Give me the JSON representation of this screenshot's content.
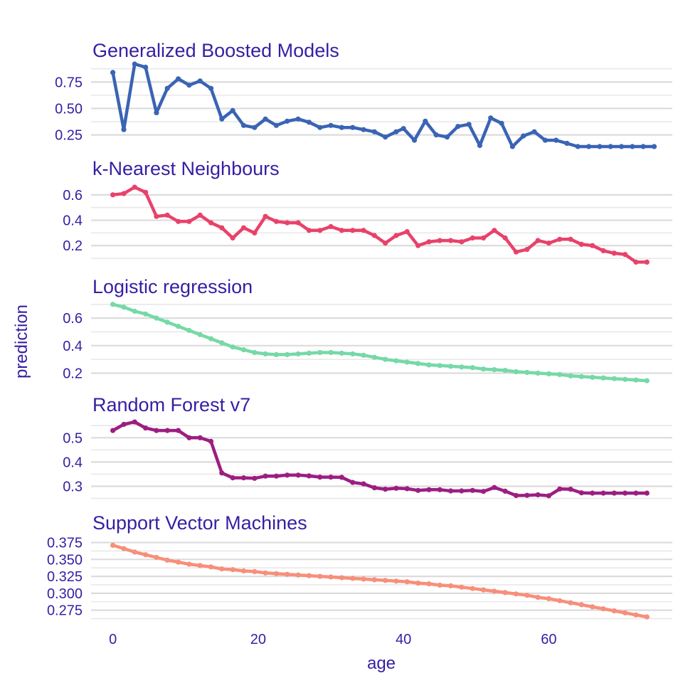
{
  "chart_data": {
    "type": "line",
    "xlabel": "age",
    "ylabel": "prediction",
    "xlim": [
      -3,
      77
    ],
    "xticks": [
      0,
      20,
      40,
      60
    ],
    "panels": [
      {
        "title": "Generalized Boosted Models",
        "color": "#3a64b4",
        "ylim": [
          0.14,
          0.92
        ],
        "yticks": [
          0.25,
          0.5,
          0.75
        ],
        "tick_labels": [
          "0.25",
          "0.50",
          "0.75"
        ],
        "x": [
          0,
          1.5,
          3,
          4.5,
          6,
          7.5,
          9,
          10.5,
          12,
          13.5,
          15,
          16.5,
          18,
          19.5,
          21,
          22.5,
          24,
          25.5,
          27,
          28.5,
          30,
          31.5,
          33,
          34.5,
          36,
          37.5,
          39,
          40,
          41.5,
          43,
          44.5,
          46,
          47.5,
          49,
          50.5,
          52,
          53.5,
          55,
          56.5,
          58,
          59.5,
          61,
          62.5,
          64,
          65.5,
          67,
          68.5,
          70,
          71.5,
          73,
          74.5
        ],
        "values": [
          0.84,
          0.3,
          0.92,
          0.89,
          0.46,
          0.69,
          0.78,
          0.72,
          0.76,
          0.69,
          0.4,
          0.48,
          0.34,
          0.32,
          0.4,
          0.34,
          0.38,
          0.4,
          0.37,
          0.32,
          0.34,
          0.32,
          0.32,
          0.3,
          0.28,
          0.23,
          0.28,
          0.31,
          0.2,
          0.38,
          0.25,
          0.23,
          0.33,
          0.35,
          0.15,
          0.41,
          0.36,
          0.14,
          0.24,
          0.28,
          0.2,
          0.2,
          0.17,
          0.14,
          0.14,
          0.14,
          0.14,
          0.14,
          0.14,
          0.14,
          0.14
        ]
      },
      {
        "title": "k-Nearest Neighbours",
        "color": "#e8426a",
        "ylim": [
          0.05,
          0.7
        ],
        "yticks": [
          0.2,
          0.4,
          0.6
        ],
        "tick_labels": [
          "0.2",
          "0.4",
          "0.6"
        ],
        "x": [
          0,
          1.5,
          3,
          4.5,
          6,
          7.5,
          9,
          10.5,
          12,
          13.5,
          15,
          16.5,
          18,
          19.5,
          21,
          22.5,
          24,
          25.5,
          27,
          28.5,
          30,
          31.5,
          33,
          34.5,
          36,
          37.5,
          39,
          40.5,
          42,
          43.5,
          45,
          46.5,
          48,
          49.5,
          51,
          52.5,
          54,
          55.5,
          57,
          58.5,
          60,
          61.5,
          63,
          64.5,
          66,
          67.5,
          69,
          70.5,
          72,
          73.5
        ],
        "values": [
          0.6,
          0.61,
          0.66,
          0.62,
          0.43,
          0.44,
          0.39,
          0.39,
          0.44,
          0.38,
          0.34,
          0.26,
          0.34,
          0.3,
          0.43,
          0.39,
          0.38,
          0.38,
          0.32,
          0.32,
          0.35,
          0.32,
          0.32,
          0.32,
          0.28,
          0.22,
          0.28,
          0.31,
          0.2,
          0.23,
          0.24,
          0.24,
          0.23,
          0.26,
          0.26,
          0.32,
          0.26,
          0.15,
          0.17,
          0.24,
          0.22,
          0.25,
          0.25,
          0.21,
          0.2,
          0.16,
          0.14,
          0.13,
          0.07,
          0.07
        ]
      },
      {
        "title": "Logistic regression",
        "color": "#76d9a6",
        "ylim": [
          0.13,
          0.73
        ],
        "yticks": [
          0.2,
          0.4,
          0.6
        ],
        "tick_labels": [
          "0.2",
          "0.4",
          "0.6"
        ],
        "x": [
          0,
          1.5,
          3,
          4.5,
          6,
          7.5,
          9,
          10.5,
          12,
          13.5,
          15,
          16.5,
          18,
          19.5,
          21,
          22.5,
          24,
          25.5,
          27,
          28.5,
          30,
          31.5,
          33,
          34.5,
          36,
          37.5,
          39,
          40.5,
          42,
          43.5,
          45,
          46.5,
          48,
          49.5,
          51,
          52.5,
          54,
          55.5,
          57,
          58.5,
          60,
          61.5,
          63,
          64.5,
          66,
          67.5,
          69,
          70.5,
          72,
          73.5
        ],
        "values": [
          0.7,
          0.68,
          0.65,
          0.63,
          0.6,
          0.57,
          0.54,
          0.51,
          0.48,
          0.45,
          0.42,
          0.39,
          0.37,
          0.35,
          0.34,
          0.335,
          0.335,
          0.34,
          0.345,
          0.35,
          0.35,
          0.345,
          0.34,
          0.33,
          0.315,
          0.3,
          0.29,
          0.28,
          0.27,
          0.26,
          0.255,
          0.25,
          0.245,
          0.24,
          0.23,
          0.225,
          0.22,
          0.21,
          0.205,
          0.2,
          0.195,
          0.19,
          0.18,
          0.175,
          0.17,
          0.165,
          0.16,
          0.155,
          0.15,
          0.145
        ]
      },
      {
        "title": "Random Forest v7",
        "color": "#9c1e81",
        "ylim": [
          0.24,
          0.58
        ],
        "yticks": [
          0.3,
          0.4,
          0.5
        ],
        "tick_labels": [
          "0.3",
          "0.4",
          "0.5"
        ],
        "x": [
          0,
          1.5,
          3,
          4.5,
          6,
          7.5,
          9,
          10.5,
          12,
          13.5,
          15,
          16.5,
          18,
          19.5,
          21,
          22.5,
          24,
          25.5,
          27,
          28.5,
          30,
          31.5,
          33,
          34.5,
          36,
          37.5,
          39,
          40.5,
          42,
          43.5,
          45,
          46.5,
          48,
          49.5,
          51,
          52.5,
          54,
          55.5,
          57,
          58.5,
          60,
          61.5,
          63,
          64.5,
          66,
          67.5,
          69,
          70.5,
          72,
          73.5
        ],
        "values": [
          0.53,
          0.555,
          0.565,
          0.54,
          0.53,
          0.53,
          0.53,
          0.5,
          0.5,
          0.485,
          0.355,
          0.335,
          0.335,
          0.333,
          0.342,
          0.342,
          0.346,
          0.346,
          0.343,
          0.338,
          0.338,
          0.337,
          0.316,
          0.31,
          0.294,
          0.288,
          0.292,
          0.29,
          0.283,
          0.286,
          0.286,
          0.281,
          0.281,
          0.283,
          0.279,
          0.295,
          0.28,
          0.262,
          0.263,
          0.265,
          0.261,
          0.289,
          0.288,
          0.273,
          0.272,
          0.272,
          0.272,
          0.272,
          0.272,
          0.272
        ]
      },
      {
        "title": "Support Vector Machines",
        "color": "#f78f7a",
        "ylim": [
          0.262,
          0.384
        ],
        "yticks": [
          0.275,
          0.3,
          0.325,
          0.35,
          0.375
        ],
        "tick_labels": [
          "0.275",
          "0.300",
          "0.325",
          "0.350",
          "0.375"
        ],
        "x": [
          0,
          1.5,
          3,
          4.5,
          6,
          7.5,
          9,
          10.5,
          12,
          13.5,
          15,
          16.5,
          18,
          19.5,
          21,
          22.5,
          24,
          25.5,
          27,
          28.5,
          30,
          31.5,
          33,
          34.5,
          36,
          37.5,
          39,
          40.5,
          42,
          43.5,
          45,
          46.5,
          48,
          49.5,
          51,
          52.5,
          54,
          55.5,
          57,
          58.5,
          60,
          61.5,
          63,
          64.5,
          66,
          67.5,
          69,
          70.5,
          72,
          73.5
        ],
        "values": [
          0.371,
          0.366,
          0.361,
          0.357,
          0.353,
          0.349,
          0.346,
          0.343,
          0.341,
          0.339,
          0.336,
          0.335,
          0.333,
          0.332,
          0.33,
          0.329,
          0.328,
          0.327,
          0.326,
          0.325,
          0.324,
          0.323,
          0.322,
          0.321,
          0.32,
          0.319,
          0.318,
          0.317,
          0.315,
          0.314,
          0.312,
          0.311,
          0.309,
          0.307,
          0.305,
          0.303,
          0.301,
          0.299,
          0.297,
          0.294,
          0.292,
          0.289,
          0.286,
          0.283,
          0.28,
          0.277,
          0.274,
          0.271,
          0.268,
          0.265
        ]
      }
    ]
  }
}
